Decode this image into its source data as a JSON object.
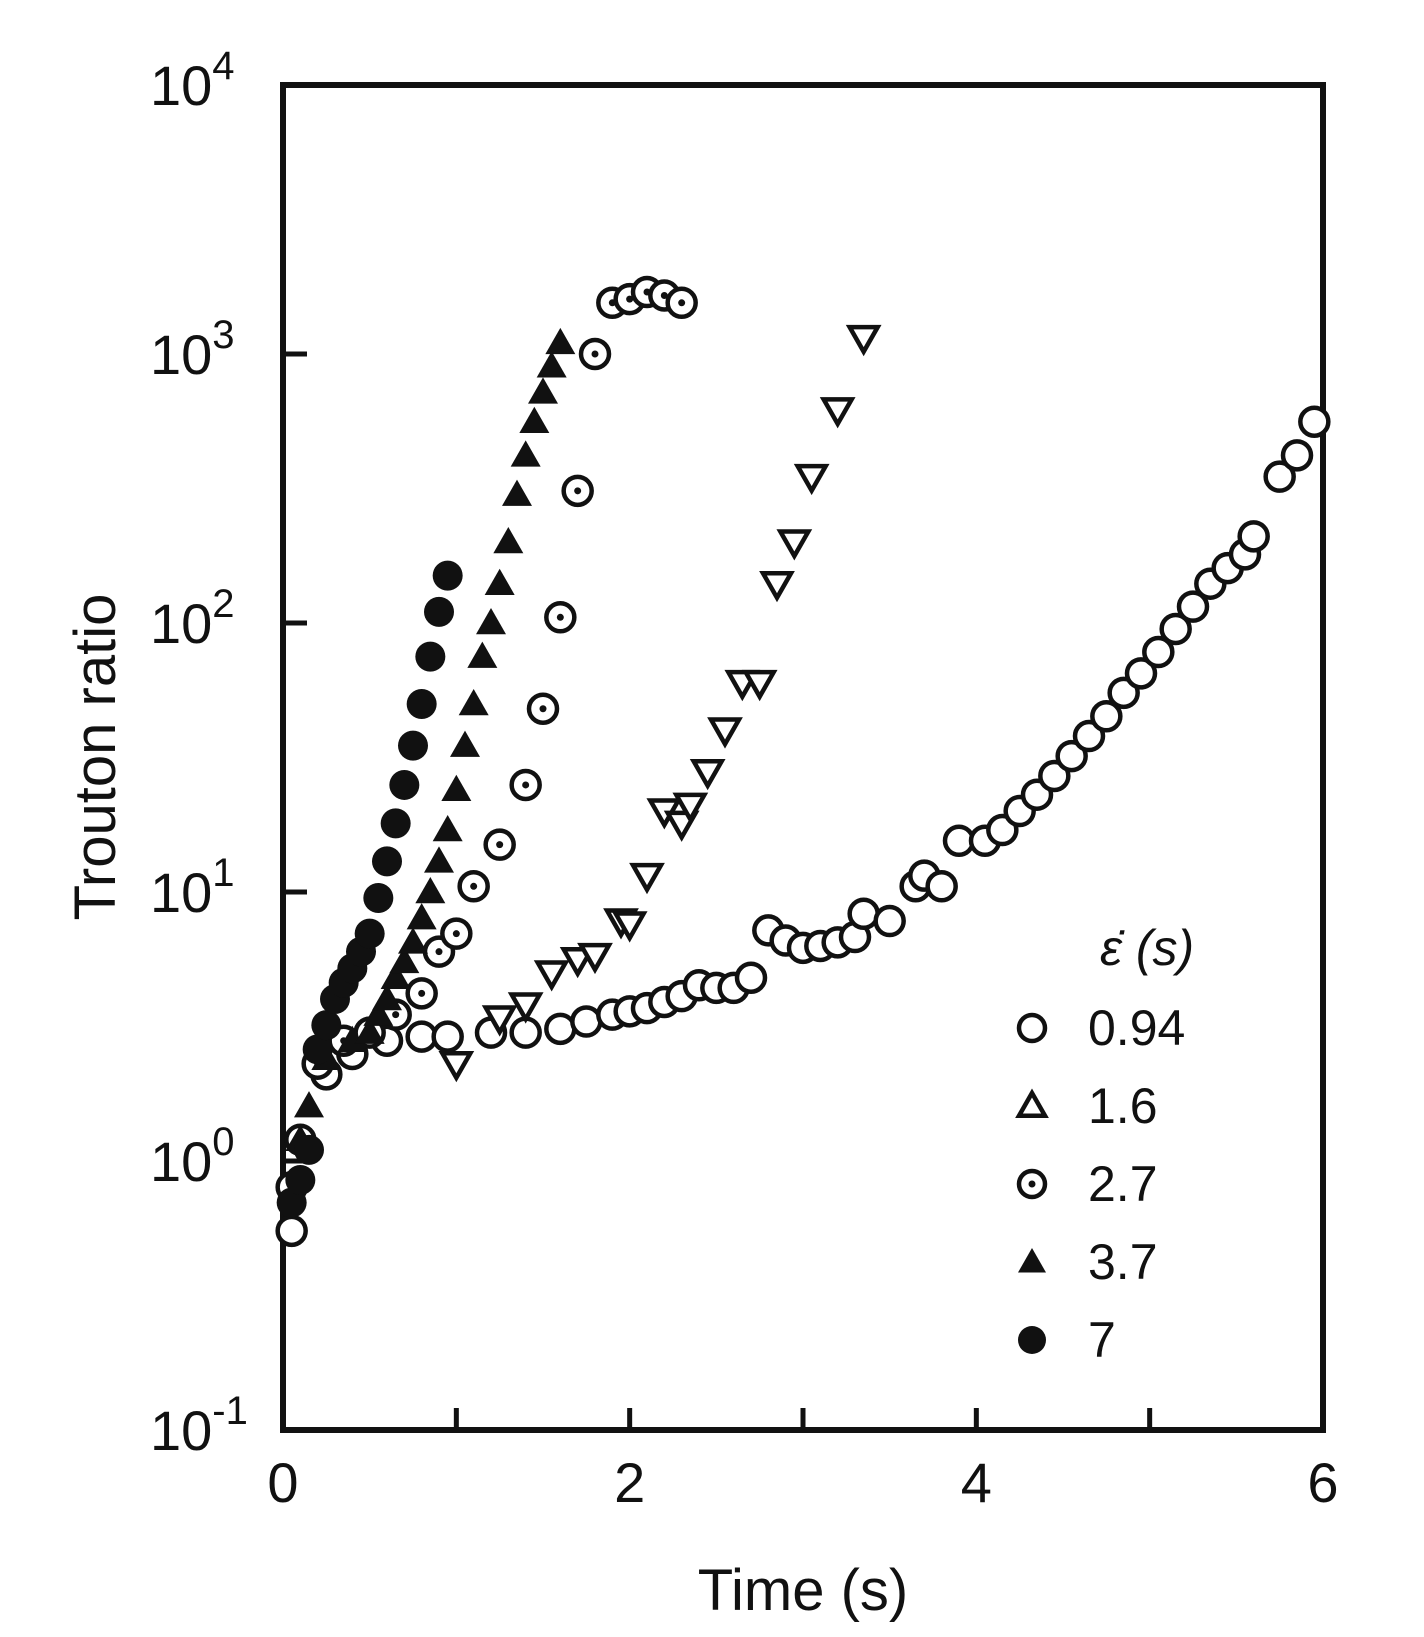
{
  "chart_data": {
    "type": "scatter",
    "title": "",
    "xlabel": "Time (s)",
    "ylabel": "Trouton ratio",
    "xlim": [
      0,
      6
    ],
    "ylim": [
      0.1,
      10000
    ],
    "yscale": "log",
    "grid": false,
    "legend_placement": "bottom-right",
    "legend_title": "ε̇ (s)",
    "x_ticks": [
      {
        "value": 0,
        "label": "0"
      },
      {
        "value": 2,
        "label": "2"
      },
      {
        "value": 4,
        "label": "4"
      },
      {
        "value": 6,
        "label": "6"
      }
    ],
    "x_minor_ticks": [
      1,
      3,
      5
    ],
    "y_ticks": [
      {
        "value": 0.1,
        "base": "10",
        "exp": "-1"
      },
      {
        "value": 1,
        "base": "10",
        "exp": "0"
      },
      {
        "value": 10,
        "base": "10",
        "exp": "1"
      },
      {
        "value": 100,
        "base": "10",
        "exp": "2"
      },
      {
        "value": 1000,
        "base": "10",
        "exp": "3"
      },
      {
        "value": 10000,
        "base": "10",
        "exp": "4"
      }
    ],
    "series": [
      {
        "name": "0.94",
        "marker": "open-circle",
        "points": [
          [
            0.05,
            0.55
          ],
          [
            0.25,
            2.1
          ],
          [
            0.4,
            2.5
          ],
          [
            0.6,
            2.8
          ],
          [
            0.8,
            2.9
          ],
          [
            0.95,
            2.9
          ],
          [
            1.2,
            3.0
          ],
          [
            1.4,
            3.0
          ],
          [
            1.6,
            3.1
          ],
          [
            1.75,
            3.3
          ],
          [
            1.9,
            3.5
          ],
          [
            2.0,
            3.6
          ],
          [
            2.1,
            3.7
          ],
          [
            2.2,
            3.9
          ],
          [
            2.3,
            4.1
          ],
          [
            2.4,
            4.5
          ],
          [
            2.5,
            4.4
          ],
          [
            2.6,
            4.4
          ],
          [
            2.7,
            4.8
          ],
          [
            2.8,
            7.2
          ],
          [
            2.9,
            6.6
          ],
          [
            3.0,
            6.2
          ],
          [
            3.1,
            6.3
          ],
          [
            3.2,
            6.5
          ],
          [
            3.3,
            6.8
          ],
          [
            3.35,
            8.3
          ],
          [
            3.5,
            7.8
          ],
          [
            3.65,
            10.5
          ],
          [
            3.7,
            11.5
          ],
          [
            3.8,
            10.5
          ],
          [
            3.9,
            15.5
          ],
          [
            4.05,
            15.5
          ],
          [
            4.15,
            17
          ],
          [
            4.25,
            20
          ],
          [
            4.35,
            23
          ],
          [
            4.45,
            27
          ],
          [
            4.55,
            32
          ],
          [
            4.65,
            38
          ],
          [
            4.75,
            45
          ],
          [
            4.85,
            55
          ],
          [
            4.95,
            65
          ],
          [
            5.05,
            78
          ],
          [
            5.15,
            95
          ],
          [
            5.25,
            115
          ],
          [
            5.35,
            140
          ],
          [
            5.45,
            160
          ],
          [
            5.55,
            180
          ],
          [
            5.6,
            210
          ],
          [
            5.75,
            350
          ],
          [
            5.85,
            420
          ],
          [
            5.95,
            560
          ]
        ]
      },
      {
        "name": "1.6",
        "marker": "open-triangle-down",
        "points": [
          [
            1.0,
            2.3
          ],
          [
            1.25,
            3.4
          ],
          [
            1.4,
            3.8
          ],
          [
            1.55,
            5.0
          ],
          [
            1.7,
            5.6
          ],
          [
            1.8,
            5.8
          ],
          [
            1.95,
            7.8
          ],
          [
            2.0,
            7.6
          ],
          [
            2.1,
            11.5
          ],
          [
            2.2,
            20
          ],
          [
            2.3,
            18
          ],
          [
            2.35,
            21
          ],
          [
            2.45,
            28
          ],
          [
            2.55,
            40
          ],
          [
            2.65,
            60
          ],
          [
            2.75,
            60
          ],
          [
            2.85,
            140
          ],
          [
            2.95,
            200
          ],
          [
            3.05,
            350
          ],
          [
            3.2,
            620
          ],
          [
            3.35,
            1150
          ]
        ]
      },
      {
        "name": "2.7",
        "marker": "dotted-circle",
        "points": [
          [
            0.05,
            0.8
          ],
          [
            0.1,
            1.2
          ],
          [
            0.2,
            2.3
          ],
          [
            0.35,
            2.8
          ],
          [
            0.5,
            3.0
          ],
          [
            0.65,
            3.5
          ],
          [
            0.8,
            4.2
          ],
          [
            0.9,
            6.0
          ],
          [
            1.0,
            7.0
          ],
          [
            1.1,
            10.5
          ],
          [
            1.25,
            15
          ],
          [
            1.4,
            25
          ],
          [
            1.5,
            48
          ],
          [
            1.6,
            105
          ],
          [
            1.7,
            310
          ],
          [
            1.8,
            1000
          ],
          [
            1.9,
            1550
          ],
          [
            2.0,
            1600
          ],
          [
            2.1,
            1700
          ],
          [
            2.2,
            1650
          ],
          [
            2.3,
            1550
          ]
        ]
      },
      {
        "name": "3.7",
        "marker": "filled-triangle",
        "points": [
          [
            0.1,
            1.2
          ],
          [
            0.15,
            1.6
          ],
          [
            0.25,
            2.4
          ],
          [
            0.4,
            2.8
          ],
          [
            0.5,
            3.0
          ],
          [
            0.55,
            3.5
          ],
          [
            0.6,
            4.0
          ],
          [
            0.65,
            4.8
          ],
          [
            0.7,
            5.5
          ],
          [
            0.75,
            6.5
          ],
          [
            0.8,
            8.0
          ],
          [
            0.85,
            10
          ],
          [
            0.9,
            13
          ],
          [
            0.95,
            17
          ],
          [
            1.0,
            24
          ],
          [
            1.05,
            35
          ],
          [
            1.1,
            50
          ],
          [
            1.15,
            75
          ],
          [
            1.2,
            100
          ],
          [
            1.25,
            140
          ],
          [
            1.3,
            200
          ],
          [
            1.35,
            300
          ],
          [
            1.4,
            420
          ],
          [
            1.45,
            560
          ],
          [
            1.5,
            720
          ],
          [
            1.55,
            900
          ],
          [
            1.6,
            1100
          ]
        ]
      },
      {
        "name": "7",
        "marker": "filled-circle",
        "points": [
          [
            0.05,
            0.7
          ],
          [
            0.1,
            0.85
          ],
          [
            0.15,
            1.1
          ],
          [
            0.2,
            2.6
          ],
          [
            0.25,
            3.2
          ],
          [
            0.3,
            4.0
          ],
          [
            0.35,
            4.6
          ],
          [
            0.4,
            5.2
          ],
          [
            0.45,
            6.0
          ],
          [
            0.5,
            7.0
          ],
          [
            0.55,
            9.5
          ],
          [
            0.6,
            13
          ],
          [
            0.65,
            18
          ],
          [
            0.7,
            25
          ],
          [
            0.75,
            35
          ],
          [
            0.8,
            50
          ],
          [
            0.85,
            75
          ],
          [
            0.9,
            110
          ],
          [
            0.95,
            150
          ]
        ]
      }
    ]
  }
}
